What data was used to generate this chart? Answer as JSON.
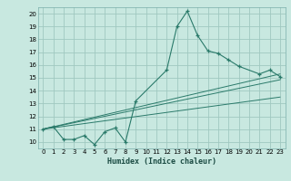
{
  "xlabel": "Humidex (Indice chaleur)",
  "xlim": [
    -0.5,
    23.5
  ],
  "ylim": [
    9.5,
    20.5
  ],
  "xticks": [
    0,
    1,
    2,
    3,
    4,
    5,
    6,
    7,
    8,
    9,
    10,
    11,
    12,
    13,
    14,
    15,
    16,
    17,
    18,
    19,
    20,
    21,
    22,
    23
  ],
  "yticks": [
    10,
    11,
    12,
    13,
    14,
    15,
    16,
    17,
    18,
    19,
    20
  ],
  "bg_color": "#c8e8e0",
  "line_color": "#2a7a6a",
  "grid_color": "#a0c8c0",
  "curve_x": [
    0,
    1,
    2,
    3,
    4,
    5,
    6,
    7,
    8,
    9,
    12,
    13,
    14,
    15,
    16,
    17,
    18,
    19,
    21,
    22,
    23
  ],
  "curve_y": [
    11.0,
    11.2,
    10.2,
    10.2,
    10.5,
    9.8,
    10.8,
    11.1,
    10.0,
    13.2,
    15.6,
    19.0,
    20.2,
    18.3,
    17.1,
    16.9,
    16.4,
    15.9,
    15.3,
    15.6,
    15.1
  ],
  "reg_lines": [
    {
      "x": [
        0,
        23
      ],
      "y": [
        11.0,
        15.3
      ]
    },
    {
      "x": [
        0,
        23
      ],
      "y": [
        11.0,
        14.85
      ]
    },
    {
      "x": [
        0,
        23
      ],
      "y": [
        11.0,
        13.5
      ]
    }
  ]
}
